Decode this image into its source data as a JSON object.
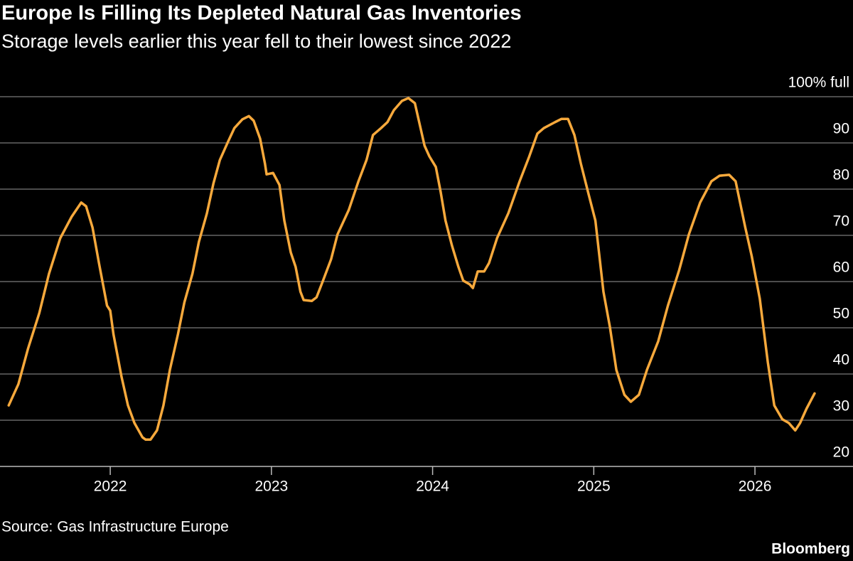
{
  "chart_data": {
    "type": "line",
    "title": "Europe Is Filling Its Depleted Natural Gas Inventories",
    "subtitle": "Storage levels earlier this year fell to their lowest since 2022",
    "source": "Source: Gas Infrastructure Europe",
    "brand": "Bloomberg",
    "x": [
      2021.37,
      2021.43,
      2021.49,
      2021.56,
      2021.62,
      2021.69,
      2021.76,
      2021.82,
      2021.85,
      2021.89,
      2021.93,
      2021.98,
      2022.0,
      2022.02,
      2022.07,
      2022.11,
      2022.15,
      2022.2,
      2022.22,
      2022.25,
      2022.29,
      2022.33,
      2022.37,
      2022.42,
      2022.46,
      2022.51,
      2022.55,
      2022.6,
      2022.64,
      2022.68,
      2022.73,
      2022.77,
      2022.82,
      2022.86,
      2022.89,
      2022.93,
      2022.96,
      2022.97,
      2023.01,
      2023.05,
      2023.08,
      2023.12,
      2023.15,
      2023.18,
      2023.2,
      2023.25,
      2023.28,
      2023.32,
      2023.37,
      2023.41,
      2023.48,
      2023.54,
      2023.59,
      2023.63,
      2023.68,
      2023.72,
      2023.76,
      2023.81,
      2023.85,
      2023.89,
      2023.92,
      2023.95,
      2023.98,
      2024.02,
      2024.05,
      2024.08,
      2024.12,
      2024.16,
      2024.19,
      2024.23,
      2024.25,
      2024.28,
      2024.32,
      2024.35,
      2024.4,
      2024.47,
      2024.54,
      2024.6,
      2024.65,
      2024.69,
      2024.76,
      2024.8,
      2024.84,
      2024.88,
      2024.92,
      2024.97,
      2025.01,
      2025.06,
      2025.1,
      2025.14,
      2025.19,
      2025.23,
      2025.28,
      2025.33,
      2025.4,
      2025.46,
      2025.53,
      2025.59,
      2025.66,
      2025.73,
      2025.78,
      2025.84,
      2025.88,
      2025.94,
      2025.98,
      2026.03,
      2026.08,
      2026.12,
      2026.17,
      2026.21,
      2026.25,
      2026.28,
      2026.32,
      2026.37
    ],
    "series": [
      {
        "name": "Storage level",
        "color": "#f7a93c",
        "values": [
          33.2,
          37.8,
          45.5,
          53.2,
          61.7,
          69.4,
          74,
          77.1,
          76.3,
          71.7,
          64,
          54.8,
          53.7,
          48.6,
          39.4,
          33.2,
          29.4,
          26.3,
          25.8,
          25.8,
          27.8,
          33.2,
          40.9,
          48.6,
          55.5,
          61.7,
          68.6,
          74.8,
          81.2,
          86.3,
          90.2,
          93.2,
          95.1,
          95.8,
          94.8,
          90.9,
          85.5,
          83.2,
          83.5,
          80.9,
          73.2,
          66.3,
          63.2,
          57.8,
          56,
          55.8,
          56.6,
          60.2,
          64.8,
          70.2,
          75.5,
          81.7,
          86.3,
          91.7,
          93.2,
          94.5,
          97.1,
          99.1,
          99.7,
          98.6,
          94,
          89.4,
          87.1,
          84.8,
          79.4,
          73.2,
          67.8,
          63.2,
          60.2,
          59.4,
          58.6,
          62.2,
          62.2,
          64,
          69.4,
          74.8,
          81.7,
          87.1,
          92,
          93.2,
          94.5,
          95.2,
          95.2,
          91.7,
          85.5,
          78.6,
          73.2,
          57.8,
          50.2,
          40.9,
          35.5,
          34,
          35.5,
          40.9,
          47.1,
          54.8,
          62.5,
          70.2,
          77.1,
          81.7,
          82.9,
          83.1,
          81.7,
          71.7,
          65.5,
          56.3,
          42.5,
          33.2,
          30.2,
          29.4,
          27.8,
          29.4,
          32.5,
          35.8
        ]
      }
    ],
    "xlim": [
      2021.316,
      2026.476
    ],
    "xticks": [
      2022,
      2023,
      2024,
      2025,
      2026
    ],
    "ylim": [
      20,
      100
    ],
    "yticks": [
      20,
      30,
      40,
      50,
      60,
      70,
      80,
      90,
      {
        "value": 100,
        "label": "100% full"
      }
    ],
    "grid": true
  }
}
